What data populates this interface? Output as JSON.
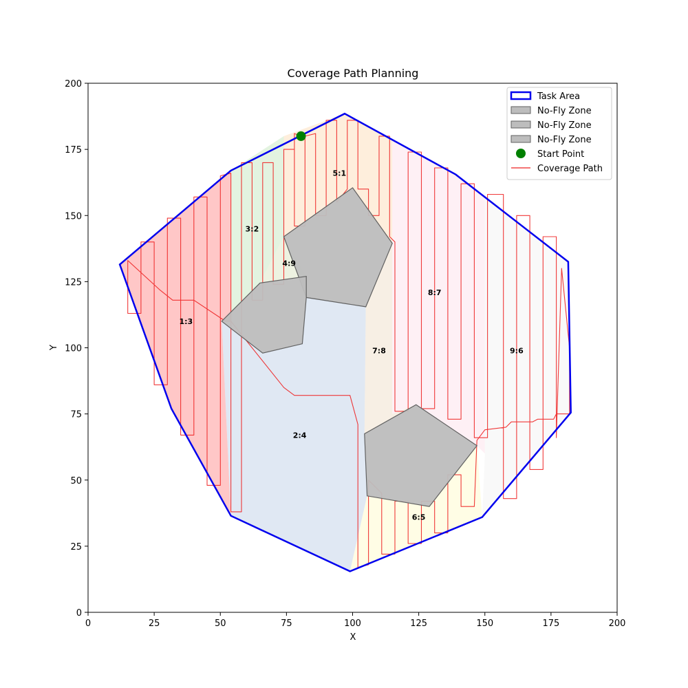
{
  "chart_data": {
    "type": "coverage-map",
    "title": "Coverage Path Planning",
    "xlabel": "X",
    "ylabel": "Y",
    "xlim": [
      0,
      200
    ],
    "ylim": [
      0,
      200
    ],
    "xticks": [
      0,
      25,
      50,
      75,
      100,
      125,
      150,
      175,
      200
    ],
    "yticks": [
      0,
      25,
      50,
      75,
      100,
      125,
      150,
      175,
      200
    ],
    "task_area": {
      "name": "Task Area",
      "color": "#0000ee",
      "points": [
        [
          97,
          188.5
        ],
        [
          139,
          165.5
        ],
        [
          181.5,
          132.5
        ],
        [
          182.5,
          75.5
        ],
        [
          149,
          36
        ],
        [
          99,
          15.5
        ],
        [
          54,
          36.5
        ],
        [
          31.5,
          77
        ],
        [
          12,
          131.5
        ],
        [
          54,
          167
        ]
      ]
    },
    "no_fly_zones": [
      {
        "name": "No-Fly Zone",
        "points": [
          [
            100,
            160.5
          ],
          [
            115,
            139.5
          ],
          [
            105,
            115.5
          ],
          [
            82.5,
            119
          ],
          [
            74,
            142
          ]
        ]
      },
      {
        "name": "No-Fly Zone",
        "points": [
          [
            82.5,
            127
          ],
          [
            65,
            124.5
          ],
          [
            50.5,
            110
          ],
          [
            66,
            98
          ],
          [
            81,
            101.5
          ],
          [
            82.5,
            119
          ]
        ]
      },
      {
        "name": "No-Fly Zone",
        "points": [
          [
            124,
            78.5
          ],
          [
            147,
            63
          ],
          [
            129,
            40
          ],
          [
            105.5,
            44
          ],
          [
            104.5,
            67.5
          ]
        ]
      }
    ],
    "regions": [
      {
        "label": "1:3",
        "color": "#ff9999",
        "lx": 37,
        "ly": 110,
        "points": [
          [
            12,
            131.5
          ],
          [
            54,
            167
          ],
          [
            54,
            110
          ],
          [
            50.5,
            110
          ],
          [
            54,
            36.5
          ],
          [
            31.5,
            77
          ]
        ]
      },
      {
        "label": "2:4",
        "color": "#c6d6ea",
        "lx": 80,
        "ly": 67,
        "points": [
          [
            50.5,
            110
          ],
          [
            66,
            98
          ],
          [
            81,
            101.5
          ],
          [
            82.5,
            119
          ],
          [
            105,
            115.5
          ],
          [
            104.5,
            67.5
          ],
          [
            105.5,
            44
          ],
          [
            99,
            15.5
          ],
          [
            54,
            36.5
          ]
        ]
      },
      {
        "label": "3:2",
        "color": "#cce9c6",
        "lx": 62,
        "ly": 145,
        "points": [
          [
            54,
            167
          ],
          [
            74,
            180
          ],
          [
            74,
            142
          ],
          [
            65,
            124.5
          ],
          [
            50.5,
            110
          ],
          [
            54,
            110
          ]
        ]
      },
      {
        "label": "4:9",
        "color": "#dfe8c8",
        "lx": 76,
        "ly": 132,
        "points": [
          [
            74,
            142
          ],
          [
            82.5,
            127
          ],
          [
            65,
            124.5
          ]
        ]
      },
      {
        "label": "5:1",
        "color": "#fde0c0",
        "lx": 95,
        "ly": 166,
        "points": [
          [
            74,
            180
          ],
          [
            97,
            188.5
          ],
          [
            115,
            179
          ],
          [
            115,
            139.5
          ],
          [
            100,
            160.5
          ],
          [
            74,
            142
          ]
        ]
      },
      {
        "label": "7:8",
        "color": "#f1e1cd",
        "lx": 110,
        "ly": 99,
        "points": [
          [
            115,
            179
          ],
          [
            115,
            139.5
          ],
          [
            105,
            115.5
          ],
          [
            104.5,
            67.5
          ],
          [
            124,
            78.5
          ],
          [
            115,
            75
          ]
        ]
      },
      {
        "label": "6:5",
        "color": "#fffbd0",
        "lx": 125,
        "ly": 36,
        "points": [
          [
            105.5,
            44
          ],
          [
            129,
            40
          ],
          [
            147,
            63
          ],
          [
            149,
            36
          ],
          [
            99,
            15.5
          ]
        ]
      },
      {
        "label": "8:7",
        "color": "#fde4ec",
        "lx": 131,
        "ly": 121,
        "points": [
          [
            115,
            179
          ],
          [
            139,
            165.5
          ],
          [
            150,
            157
          ],
          [
            150,
            60
          ],
          [
            147,
            63
          ],
          [
            124,
            78.5
          ],
          [
            115,
            75
          ]
        ]
      },
      {
        "label": "9:6",
        "color": "#f4f4f4",
        "lx": 162,
        "ly": 99,
        "points": [
          [
            150,
            157
          ],
          [
            181.5,
            132.5
          ],
          [
            182.5,
            75.5
          ],
          [
            149,
            36
          ],
          [
            150,
            60
          ]
        ]
      }
    ],
    "coverage_path": {
      "name": "Coverage Path",
      "color": "#ee2222",
      "points": [
        [
          80.5,
          180
        ],
        [
          78,
          181
        ],
        [
          78,
          146
        ],
        [
          82,
          146
        ],
        [
          82,
          180
        ],
        [
          86,
          181
        ],
        [
          86,
          150
        ],
        [
          90,
          150
        ],
        [
          90,
          186
        ],
        [
          94,
          186
        ],
        [
          94,
          155
        ],
        [
          98,
          160
        ],
        [
          98,
          186
        ],
        [
          102,
          186
        ],
        [
          102,
          160
        ],
        [
          106,
          160
        ],
        [
          106,
          150
        ],
        [
          110,
          150
        ],
        [
          110,
          180
        ],
        [
          114,
          180
        ],
        [
          114,
          142
        ],
        [
          116,
          140
        ],
        [
          116,
          76
        ],
        [
          121,
          76
        ],
        [
          121,
          174
        ],
        [
          126,
          174
        ],
        [
          126,
          77
        ],
        [
          131,
          77
        ],
        [
          131,
          168
        ],
        [
          136,
          168
        ],
        [
          136,
          73
        ],
        [
          141,
          73
        ],
        [
          141,
          162
        ],
        [
          146,
          162
        ],
        [
          146,
          66
        ],
        [
          151,
          66
        ],
        [
          151,
          158
        ],
        [
          157,
          158
        ],
        [
          157,
          43
        ],
        [
          162,
          43
        ],
        [
          162,
          150
        ],
        [
          167,
          150
        ],
        [
          167,
          54
        ],
        [
          172,
          54
        ],
        [
          172,
          142
        ],
        [
          177,
          142
        ],
        [
          177,
          66
        ],
        [
          179,
          130
        ],
        [
          182,
          100
        ],
        [
          182,
          75
        ],
        [
          177,
          75
        ],
        [
          176,
          73
        ],
        [
          170,
          73
        ],
        [
          168,
          72
        ],
        [
          160,
          72
        ],
        [
          158,
          70
        ],
        [
          150,
          69
        ],
        [
          147,
          65
        ],
        [
          146,
          40
        ],
        [
          141,
          40
        ],
        [
          141,
          52
        ],
        [
          136,
          52
        ],
        [
          136,
          30
        ],
        [
          131,
          30
        ],
        [
          131,
          42
        ],
        [
          126,
          42
        ],
        [
          126,
          26
        ],
        [
          121,
          26
        ],
        [
          121,
          42
        ],
        [
          116,
          42
        ],
        [
          116,
          22
        ],
        [
          111,
          22
        ],
        [
          111,
          45
        ],
        [
          106,
          50
        ],
        [
          106,
          18
        ],
        [
          102,
          17
        ],
        [
          102,
          71
        ],
        [
          99,
          82
        ],
        [
          78,
          82
        ],
        [
          74,
          85
        ],
        [
          54,
          110
        ],
        [
          52,
          110
        ],
        [
          40,
          118
        ],
        [
          32,
          118
        ],
        [
          27,
          122
        ],
        [
          15,
          133
        ],
        [
          15,
          113
        ],
        [
          20,
          113
        ],
        [
          20,
          140
        ],
        [
          25,
          140
        ],
        [
          25,
          86
        ],
        [
          30,
          86
        ],
        [
          30,
          149
        ],
        [
          35,
          149
        ],
        [
          35,
          67
        ],
        [
          40,
          67
        ],
        [
          40,
          157
        ],
        [
          45,
          157
        ],
        [
          45,
          48
        ],
        [
          50,
          48
        ],
        [
          50,
          165
        ],
        [
          54,
          166
        ],
        [
          54,
          38
        ],
        [
          58,
          38
        ],
        [
          58,
          170
        ],
        [
          62,
          170
        ],
        [
          62,
          118
        ],
        [
          66,
          118
        ],
        [
          66,
          170
        ],
        [
          70,
          170
        ],
        [
          70,
          124
        ],
        [
          74,
          124
        ],
        [
          74,
          175
        ],
        [
          78,
          175
        ]
      ]
    },
    "start_point": {
      "name": "Start Point",
      "x": 80.5,
      "y": 180,
      "color": "#008000"
    },
    "legend": {
      "position": "top-right",
      "entries": [
        {
          "label": "Task Area",
          "kind": "area",
          "color": "#0000ee"
        },
        {
          "label": "No-Fly Zone",
          "kind": "nofly",
          "color": "#bdbdbd"
        },
        {
          "label": "No-Fly Zone",
          "kind": "nofly",
          "color": "#bdbdbd"
        },
        {
          "label": "No-Fly Zone",
          "kind": "nofly",
          "color": "#bdbdbd"
        },
        {
          "label": "Start Point",
          "kind": "point",
          "color": "#008000"
        },
        {
          "label": "Coverage Path",
          "kind": "line",
          "color": "#ee2222"
        }
      ]
    }
  }
}
